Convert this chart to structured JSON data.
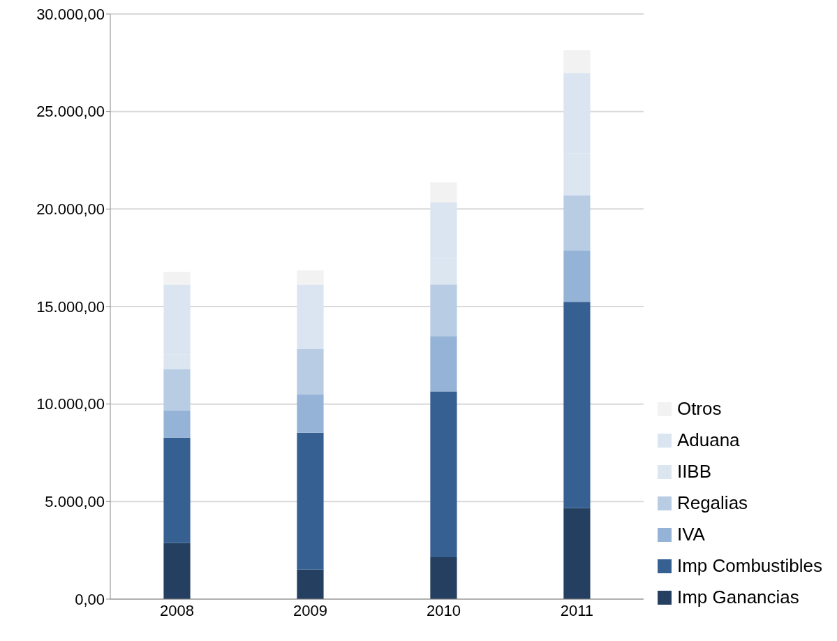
{
  "chart_data": {
    "type": "bar",
    "stacked": true,
    "categories": [
      "2008",
      "2009",
      "2010",
      "2011"
    ],
    "series": [
      {
        "name": "Imp Ganancias",
        "color": "#253f60",
        "values": [
          2870,
          1510,
          2150,
          4660
        ]
      },
      {
        "name": "Imp Combustibles",
        "color": "#366092",
        "values": [
          5410,
          7020,
          8500,
          10580
        ]
      },
      {
        "name": "IVA",
        "color": "#95b3d7",
        "values": [
          1400,
          1980,
          2840,
          2620
        ]
      },
      {
        "name": "Regalias",
        "color": "#b8cce4",
        "values": [
          2120,
          2320,
          2650,
          2850
        ]
      },
      {
        "name": "IIBB",
        "color": "#dce6f1",
        "values": [
          740,
          0,
          1340,
          2150
        ]
      },
      {
        "name": "Aduana",
        "color": "#dbe5f1",
        "values": [
          3590,
          3300,
          2850,
          4100
        ]
      },
      {
        "name": "Otros",
        "color": "#f2f2f2",
        "values": [
          640,
          720,
          1030,
          1180
        ]
      }
    ],
    "ylim": [
      0,
      30000
    ],
    "yticks": [
      {
        "value": 0,
        "label": "0,00"
      },
      {
        "value": 5000,
        "label": "5.000,00"
      },
      {
        "value": 10000,
        "label": "10.000,00"
      },
      {
        "value": 15000,
        "label": "15.000,00"
      },
      {
        "value": 20000,
        "label": "20.000,00"
      },
      {
        "value": 25000,
        "label": "25.000,00"
      },
      {
        "value": 30000,
        "label": "30.000,00"
      }
    ],
    "grid": "y",
    "legend": "right"
  }
}
